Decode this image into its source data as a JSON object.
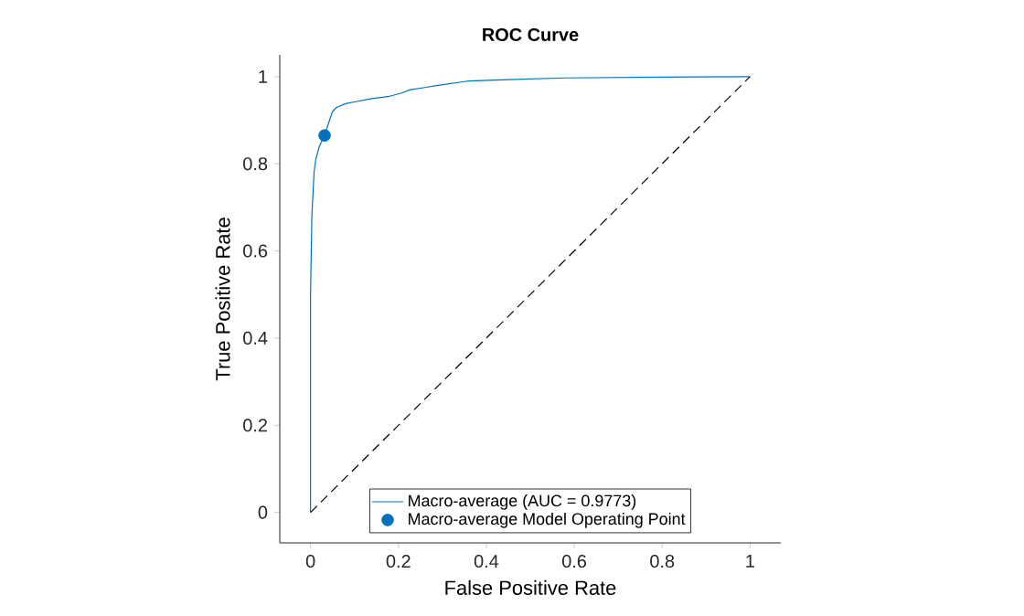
{
  "chart_data": {
    "type": "line",
    "title": "ROC Curve",
    "xlabel": "False Positive Rate",
    "ylabel": "True Positive Rate",
    "xlim": [
      -0.07,
      1.07
    ],
    "ylim": [
      -0.07,
      1.05
    ],
    "xticks": [
      0,
      0.2,
      0.4,
      0.6,
      0.8,
      1
    ],
    "yticks": [
      0,
      0.2,
      0.4,
      0.6,
      0.8,
      1
    ],
    "legend": "bottom",
    "grid": false,
    "series": [
      {
        "name": "Macro-average (AUC = 0.9773)",
        "color": "#0072bd",
        "line_style": "solid",
        "x": [
          0,
          0,
          0.003,
          0.008,
          0.012,
          0.02,
          0.025,
          0.032,
          0.04,
          0.05,
          0.06,
          0.08,
          0.1,
          0.136,
          0.18,
          0.206,
          0.227,
          0.26,
          0.29,
          0.36,
          0.45,
          0.58,
          0.8,
          1
        ],
        "values": [
          0,
          0.5,
          0.68,
          0.78,
          0.81,
          0.84,
          0.85,
          0.865,
          0.89,
          0.92,
          0.93,
          0.938,
          0.942,
          0.949,
          0.955,
          0.962,
          0.97,
          0.975,
          0.98,
          0.99,
          0.993,
          0.997,
          0.999,
          1
        ]
      },
      {
        "type": "scatter",
        "name": "Macro-average Model Operating Point",
        "color": "#0072bd",
        "marker": "circle",
        "x": [
          0.032
        ],
        "values": [
          0.865
        ]
      },
      {
        "color": "#000000",
        "line_style": "dashed",
        "x": [
          0,
          1
        ],
        "values": [
          0,
          1
        ]
      }
    ]
  }
}
